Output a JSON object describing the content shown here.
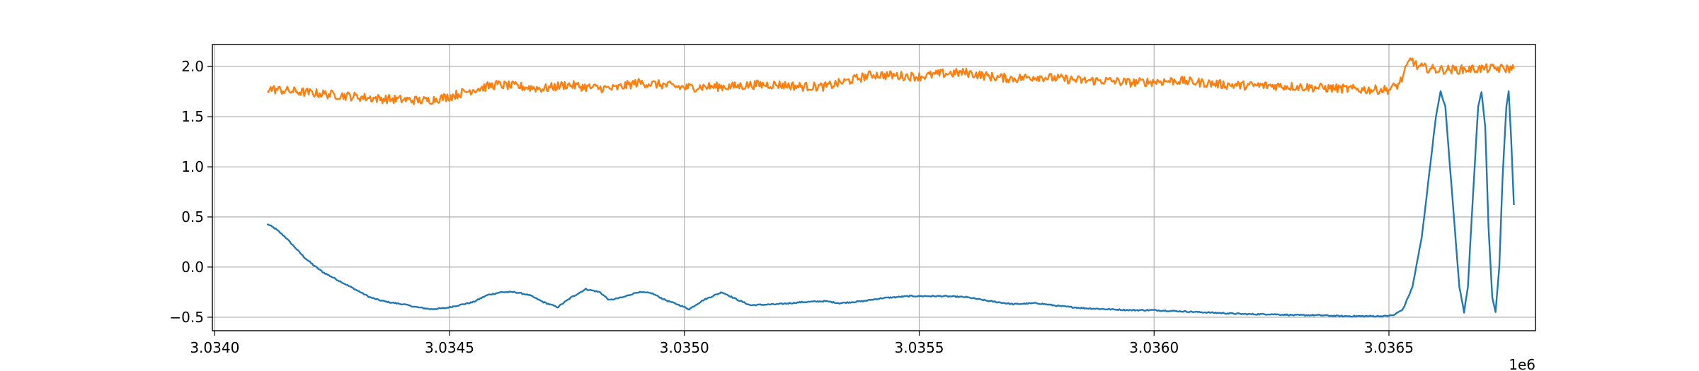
{
  "chart_data": {
    "type": "line",
    "title": "",
    "xlabel": "",
    "ylabel": "",
    "x_offset_label": "1e6",
    "xlim": [
      3.033995,
      3.036812
    ],
    "ylim": [
      -0.635,
      2.22
    ],
    "grid": true,
    "x_ticks": [
      3.034,
      3.0345,
      3.035,
      3.0355,
      3.036,
      3.0365
    ],
    "x_tick_labels": [
      "3.0340",
      "3.0345",
      "3.0350",
      "3.0355",
      "3.0360",
      "3.0365"
    ],
    "y_ticks": [
      -0.5,
      0.0,
      0.5,
      1.0,
      1.5,
      2.0
    ],
    "y_tick_labels": [
      "−0.5",
      "0.0",
      "0.5",
      "1.0",
      "1.5",
      "2.0"
    ],
    "series": [
      {
        "color": "#1f77b4",
        "noise": 0.006,
        "points": [
          [
            3.034112,
            0.43
          ],
          [
            3.03413,
            0.38
          ],
          [
            3.03415,
            0.3
          ],
          [
            3.03417,
            0.2
          ],
          [
            3.03419,
            0.1
          ],
          [
            3.03421,
            0.02
          ],
          [
            3.03423,
            -0.05
          ],
          [
            3.03425,
            -0.1
          ],
          [
            3.03427,
            -0.15
          ],
          [
            3.03429,
            -0.2
          ],
          [
            3.03431,
            -0.25
          ],
          [
            3.03433,
            -0.3
          ],
          [
            3.03435,
            -0.33
          ],
          [
            3.03437,
            -0.35
          ],
          [
            3.0344,
            -0.37
          ],
          [
            3.03443,
            -0.4
          ],
          [
            3.03446,
            -0.42
          ],
          [
            3.03449,
            -0.41
          ],
          [
            3.03452,
            -0.38
          ],
          [
            3.03455,
            -0.35
          ],
          [
            3.03458,
            -0.28
          ],
          [
            3.03461,
            -0.25
          ],
          [
            3.03464,
            -0.25
          ],
          [
            3.03467,
            -0.28
          ],
          [
            3.0347,
            -0.35
          ],
          [
            3.03473,
            -0.4
          ],
          [
            3.03476,
            -0.3
          ],
          [
            3.03479,
            -0.22
          ],
          [
            3.03482,
            -0.25
          ],
          [
            3.03484,
            -0.33
          ],
          [
            3.03487,
            -0.3
          ],
          [
            3.0349,
            -0.25
          ],
          [
            3.03493,
            -0.26
          ],
          [
            3.03496,
            -0.33
          ],
          [
            3.03499,
            -0.38
          ],
          [
            3.03501,
            -0.42
          ],
          [
            3.03504,
            -0.33
          ],
          [
            3.03508,
            -0.25
          ],
          [
            3.03511,
            -0.32
          ],
          [
            3.03514,
            -0.38
          ],
          [
            3.0352,
            -0.37
          ],
          [
            3.03525,
            -0.35
          ],
          [
            3.0353,
            -0.34
          ],
          [
            3.03533,
            -0.36
          ],
          [
            3.03538,
            -0.34
          ],
          [
            3.03542,
            -0.31
          ],
          [
            3.03548,
            -0.29
          ],
          [
            3.03555,
            -0.29
          ],
          [
            3.0356,
            -0.3
          ],
          [
            3.03565,
            -0.34
          ],
          [
            3.0357,
            -0.37
          ],
          [
            3.03575,
            -0.36
          ],
          [
            3.0358,
            -0.39
          ],
          [
            3.03585,
            -0.41
          ],
          [
            3.0359,
            -0.42
          ],
          [
            3.03595,
            -0.43
          ],
          [
            3.036,
            -0.43
          ],
          [
            3.03605,
            -0.44
          ],
          [
            3.0361,
            -0.45
          ],
          [
            3.03615,
            -0.46
          ],
          [
            3.0362,
            -0.47
          ],
          [
            3.03625,
            -0.47
          ],
          [
            3.0363,
            -0.48
          ],
          [
            3.03635,
            -0.48
          ],
          [
            3.0364,
            -0.49
          ],
          [
            3.03645,
            -0.49
          ],
          [
            3.03649,
            -0.49
          ],
          [
            3.03651,
            -0.48
          ],
          [
            3.03653,
            -0.42
          ],
          [
            3.03655,
            -0.2
          ],
          [
            3.03657,
            0.3
          ],
          [
            3.036585,
            0.9
          ],
          [
            3.0366,
            1.5
          ],
          [
            3.03661,
            1.75
          ],
          [
            3.03662,
            1.6
          ],
          [
            3.036635,
            0.7
          ],
          [
            3.03665,
            -0.2
          ],
          [
            3.03666,
            -0.45
          ],
          [
            3.036668,
            -0.2
          ],
          [
            3.03668,
            0.8
          ],
          [
            3.03669,
            1.6
          ],
          [
            3.036697,
            1.75
          ],
          [
            3.036705,
            1.4
          ],
          [
            3.036712,
            0.4
          ],
          [
            3.03672,
            -0.3
          ],
          [
            3.036727,
            -0.45
          ],
          [
            3.036735,
            0.0
          ],
          [
            3.036742,
            0.9
          ],
          [
            3.03675,
            1.6
          ],
          [
            3.036755,
            1.75
          ],
          [
            3.03676,
            1.3
          ],
          [
            3.036766,
            0.62
          ]
        ]
      },
      {
        "color": "#ff7f0e",
        "noise": 0.045,
        "points": [
          [
            3.034112,
            1.78
          ],
          [
            3.03415,
            1.76
          ],
          [
            3.0342,
            1.74
          ],
          [
            3.03425,
            1.72
          ],
          [
            3.0343,
            1.7
          ],
          [
            3.03435,
            1.68
          ],
          [
            3.0344,
            1.67
          ],
          [
            3.03445,
            1.66
          ],
          [
            3.0345,
            1.7
          ],
          [
            3.03455,
            1.77
          ],
          [
            3.0346,
            1.82
          ],
          [
            3.03465,
            1.8
          ],
          [
            3.0347,
            1.78
          ],
          [
            3.03475,
            1.82
          ],
          [
            3.0348,
            1.79
          ],
          [
            3.03485,
            1.78
          ],
          [
            3.0349,
            1.84
          ],
          [
            3.03495,
            1.82
          ],
          [
            3.035,
            1.79
          ],
          [
            3.03505,
            1.8
          ],
          [
            3.0351,
            1.8
          ],
          [
            3.03515,
            1.82
          ],
          [
            3.0352,
            1.82
          ],
          [
            3.03525,
            1.8
          ],
          [
            3.0353,
            1.8
          ],
          [
            3.03535,
            1.86
          ],
          [
            3.0354,
            1.92
          ],
          [
            3.03545,
            1.91
          ],
          [
            3.0355,
            1.9
          ],
          [
            3.03555,
            1.93
          ],
          [
            3.0356,
            1.94
          ],
          [
            3.03565,
            1.9
          ],
          [
            3.0357,
            1.88
          ],
          [
            3.03575,
            1.9
          ],
          [
            3.0358,
            1.88
          ],
          [
            3.03585,
            1.86
          ],
          [
            3.0359,
            1.86
          ],
          [
            3.03595,
            1.84
          ],
          [
            3.036,
            1.85
          ],
          [
            3.03605,
            1.86
          ],
          [
            3.0361,
            1.84
          ],
          [
            3.03615,
            1.82
          ],
          [
            3.0362,
            1.81
          ],
          [
            3.03625,
            1.81
          ],
          [
            3.0363,
            1.8
          ],
          [
            3.03635,
            1.79
          ],
          [
            3.0364,
            1.78
          ],
          [
            3.03645,
            1.77
          ],
          [
            3.0365,
            1.77
          ],
          [
            3.03652,
            1.82
          ],
          [
            3.03653,
            1.9
          ],
          [
            3.03654,
            2.02
          ],
          [
            3.036548,
            2.08
          ],
          [
            3.03656,
            2.0
          ],
          [
            3.0366,
            1.97
          ],
          [
            3.03665,
            1.97
          ],
          [
            3.0367,
            1.98
          ],
          [
            3.036766,
            1.98
          ]
        ]
      }
    ]
  }
}
